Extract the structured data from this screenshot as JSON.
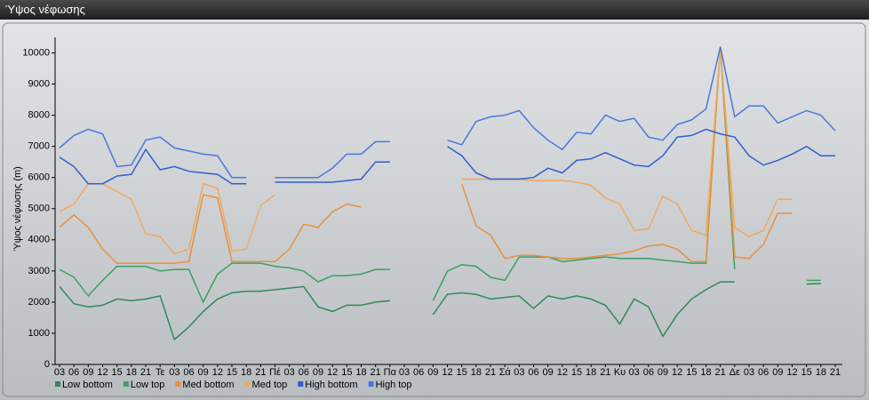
{
  "chart_data": {
    "type": "line",
    "title": "Ύψος νέφωσης",
    "y_label": "Ύψος νέφωσης (m)",
    "categories": [
      "03",
      "06",
      "09",
      "12",
      "15",
      "18",
      "21",
      "Τε",
      "03",
      "06",
      "09",
      "12",
      "15",
      "18",
      "21",
      "Πέ",
      "03",
      "06",
      "09",
      "12",
      "15",
      "18",
      "21",
      "Πα",
      "03",
      "06",
      "09",
      "12",
      "15",
      "18",
      "21",
      "Σά",
      "03",
      "06",
      "09",
      "12",
      "15",
      "18",
      "21",
      "Κυ",
      "03",
      "06",
      "09",
      "12",
      "15",
      "18",
      "21",
      "Δε",
      "03",
      "06",
      "09",
      "12",
      "15",
      "18",
      "21"
    ],
    "ylim": [
      0,
      10500
    ],
    "yticks": [
      0,
      1000,
      2000,
      3000,
      4000,
      5000,
      6000,
      7000,
      8000,
      9000,
      10000
    ],
    "grid": false,
    "series": [
      {
        "name": "Low bottom",
        "color": "#2e8b57",
        "values": [
          2500,
          1950,
          1850,
          1900,
          2100,
          2050,
          2100,
          2200,
          800,
          1200,
          1700,
          2100,
          2300,
          2350,
          2350,
          2400,
          2450,
          2500,
          1850,
          1700,
          1900,
          1900,
          2000,
          2050,
          null,
          null,
          1600,
          2250,
          2300,
          2250,
          2100,
          2150,
          2200,
          1800,
          2200,
          2100,
          2200,
          2100,
          1900,
          1300,
          2100,
          1850,
          900,
          1600,
          2100,
          2400,
          2650,
          2650,
          null,
          null,
          null,
          null,
          2580,
          2600,
          null
        ]
      },
      {
        "name": "Low top",
        "color": "#3aa063",
        "values": [
          3050,
          2800,
          2200,
          2700,
          3150,
          3150,
          3150,
          3000,
          3050,
          3050,
          2000,
          2900,
          3250,
          3250,
          3250,
          3150,
          3100,
          3000,
          2650,
          2850,
          2850,
          2900,
          3050,
          3050,
          null,
          null,
          2050,
          3000,
          3200,
          3150,
          2800,
          2700,
          3450,
          3450,
          3450,
          3300,
          3350,
          3400,
          3450,
          3400,
          3400,
          3400,
          3350,
          3300,
          3250,
          3250,
          10200,
          3050,
          null,
          null,
          null,
          null,
          2700,
          2700,
          null
        ]
      },
      {
        "name": "Med bottom",
        "color": "#e8913a",
        "values": [
          4400,
          4800,
          4400,
          3700,
          3250,
          3250,
          3250,
          3250,
          3250,
          3300,
          5450,
          5350,
          3300,
          3300,
          3300,
          3300,
          3700,
          4500,
          4400,
          4900,
          5150,
          5050,
          null,
          null,
          null,
          null,
          null,
          null,
          5800,
          4450,
          4150,
          3400,
          3500,
          3500,
          3450,
          3400,
          3400,
          3450,
          3500,
          3550,
          3650,
          3800,
          3850,
          3700,
          3300,
          3300,
          10200,
          3450,
          3400,
          3850,
          4850,
          4850,
          null,
          null,
          null
        ]
      },
      {
        "name": "Med top",
        "color": "#f0a860",
        "values": [
          4900,
          5150,
          5800,
          5800,
          5550,
          5300,
          4200,
          4100,
          3550,
          3700,
          5800,
          5650,
          3650,
          3700,
          5100,
          5450,
          null,
          null,
          null,
          null,
          null,
          null,
          null,
          null,
          null,
          null,
          null,
          null,
          5950,
          5950,
          5950,
          5950,
          5950,
          5900,
          5900,
          5900,
          5850,
          5750,
          5350,
          5150,
          4300,
          4350,
          5400,
          5150,
          4300,
          4150,
          10200,
          4400,
          4100,
          4300,
          5300,
          5300,
          null,
          null,
          null
        ]
      },
      {
        "name": "High bottom",
        "color": "#2f5fd0",
        "values": [
          6650,
          6350,
          5800,
          5800,
          6050,
          6100,
          6900,
          6250,
          6350,
          6200,
          6150,
          6100,
          5800,
          5800,
          null,
          5850,
          5850,
          5850,
          5850,
          5850,
          5900,
          5950,
          6500,
          6500,
          null,
          null,
          null,
          7000,
          6700,
          6150,
          5950,
          5950,
          5950,
          6000,
          6300,
          6150,
          6550,
          6600,
          6800,
          6600,
          6400,
          6350,
          6700,
          7300,
          7350,
          7550,
          7400,
          7300,
          6700,
          6400,
          6550,
          6750,
          7000,
          6700,
          6700
        ]
      },
      {
        "name": "High top",
        "color": "#4a78e0",
        "values": [
          6950,
          7350,
          7550,
          7400,
          6350,
          6400,
          7200,
          7300,
          6950,
          6850,
          6750,
          6700,
          6000,
          6000,
          null,
          6000,
          6000,
          6000,
          6000,
          6300,
          6750,
          6750,
          7150,
          7150,
          null,
          null,
          null,
          7200,
          7050,
          7800,
          7950,
          8000,
          8150,
          7600,
          7200,
          6900,
          7450,
          7400,
          8000,
          7800,
          7900,
          7300,
          7200,
          7700,
          7850,
          8200,
          10200,
          7950,
          8300,
          8300,
          7750,
          7950,
          8150,
          8000,
          7500
        ]
      }
    ]
  }
}
